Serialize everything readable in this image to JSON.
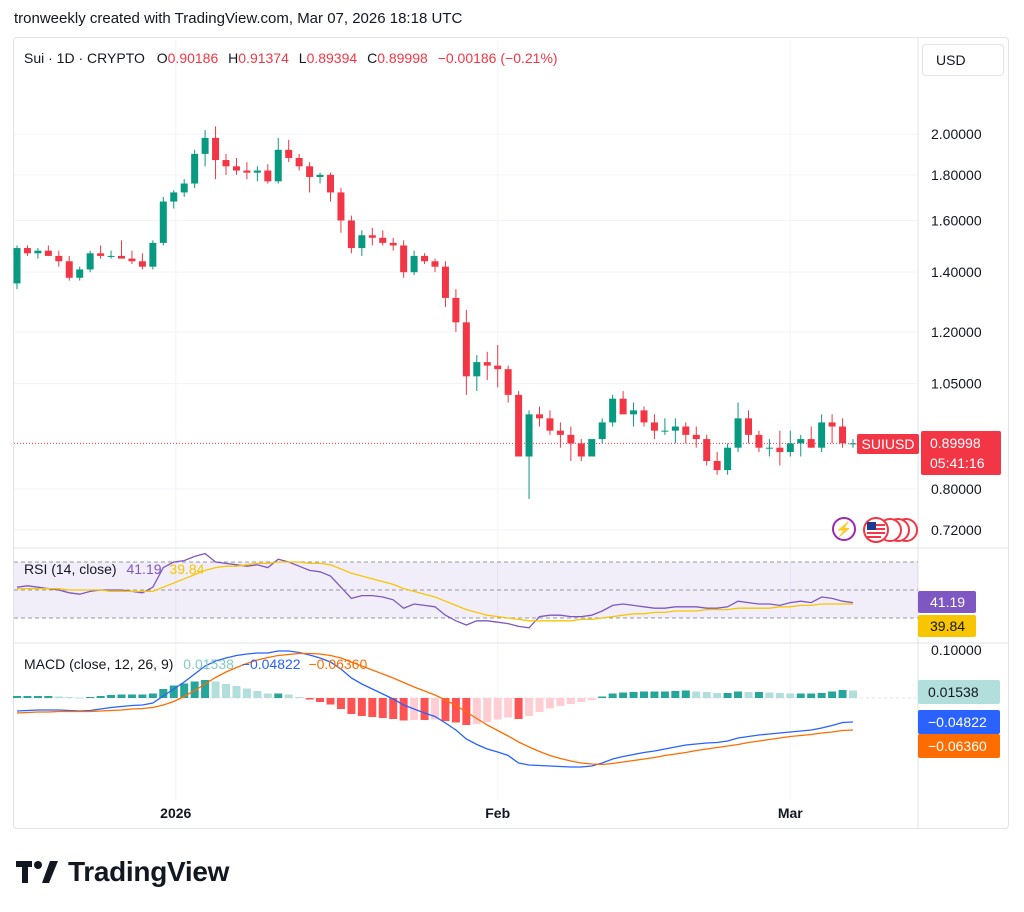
{
  "caption": "tronweekly created with TradingView.com, Mar 07, 2026 18:18 UTC",
  "brand": "TradingView",
  "currency_button": "USD",
  "legend": {
    "symbol": "Sui · 1D · CRYPTO",
    "o_label": "O",
    "o_value": "0.90186",
    "h_label": "H",
    "h_value": "0.91374",
    "l_label": "L",
    "l_value": "0.89394",
    "c_label": "C",
    "c_value": "0.89998",
    "change": "−0.00186 (−0.21%)"
  },
  "price_badge": {
    "ticker": "SUIUSD",
    "price": "0.89998",
    "countdown": "05:41:16"
  },
  "rsi": {
    "title": "RSI (14, close)",
    "value": "41.19",
    "ma_value": "39.84"
  },
  "macd": {
    "title": "MACD (close, 12, 26, 9)",
    "hist": "0.01538",
    "macd": "−0.04822",
    "signal": "−0.06360"
  },
  "colors": {
    "up": "#089981",
    "down": "#f23645",
    "rsi": "#7e57c2",
    "rsi_ma": "#f7c600",
    "macd": "#2962ff",
    "signal": "#ff6d00",
    "hist_up_strong": "#26a69a",
    "hist_up_weak": "#b2dfdb",
    "hist_down_strong": "#ff5252",
    "hist_down_weak": "#ffcdd2"
  },
  "icons": [
    "lightning-icon",
    "us-flag-icon"
  ],
  "chart_data": [
    {
      "type": "candlestick",
      "title": "Sui · 1D · CRYPTO",
      "scale": "log",
      "ylim": [
        0.68,
        2.25
      ],
      "price_ticks": [
        "2.00000",
        "1.80000",
        "1.60000",
        "1.40000",
        "1.20000",
        "1.05000",
        "0.80000",
        "0.72000"
      ],
      "x_ticks": [
        {
          "label": "2026",
          "index": 15
        },
        {
          "label": "Feb",
          "index": 46
        },
        {
          "label": "Mar",
          "index": 74
        }
      ],
      "candles": [
        [
          1.36,
          1.5,
          1.34,
          1.49
        ],
        [
          1.49,
          1.5,
          1.46,
          1.47
        ],
        [
          1.47,
          1.49,
          1.45,
          1.48
        ],
        [
          1.48,
          1.5,
          1.46,
          1.46
        ],
        [
          1.46,
          1.48,
          1.42,
          1.44
        ],
        [
          1.44,
          1.46,
          1.37,
          1.38
        ],
        [
          1.38,
          1.42,
          1.37,
          1.41
        ],
        [
          1.41,
          1.48,
          1.4,
          1.47
        ],
        [
          1.47,
          1.5,
          1.45,
          1.46
        ],
        [
          1.46,
          1.48,
          1.45,
          1.46
        ],
        [
          1.46,
          1.52,
          1.45,
          1.45
        ],
        [
          1.45,
          1.48,
          1.43,
          1.44
        ],
        [
          1.44,
          1.47,
          1.41,
          1.42
        ],
        [
          1.42,
          1.52,
          1.41,
          1.51
        ],
        [
          1.51,
          1.7,
          1.5,
          1.68
        ],
        [
          1.68,
          1.73,
          1.65,
          1.72
        ],
        [
          1.72,
          1.78,
          1.7,
          1.76
        ],
        [
          1.76,
          1.92,
          1.74,
          1.9
        ],
        [
          1.9,
          2.02,
          1.84,
          1.98
        ],
        [
          1.98,
          2.04,
          1.78,
          1.87
        ],
        [
          1.87,
          1.9,
          1.8,
          1.84
        ],
        [
          1.84,
          1.88,
          1.8,
          1.82
        ],
        [
          1.82,
          1.86,
          1.78,
          1.81
        ],
        [
          1.81,
          1.84,
          1.77,
          1.82
        ],
        [
          1.82,
          1.85,
          1.76,
          1.77
        ],
        [
          1.77,
          1.98,
          1.76,
          1.92
        ],
        [
          1.92,
          1.97,
          1.86,
          1.88
        ],
        [
          1.88,
          1.9,
          1.82,
          1.84
        ],
        [
          1.84,
          1.86,
          1.72,
          1.79
        ],
        [
          1.79,
          1.81,
          1.76,
          1.8
        ],
        [
          1.8,
          1.81,
          1.68,
          1.72
        ],
        [
          1.72,
          1.74,
          1.55,
          1.6
        ],
        [
          1.6,
          1.62,
          1.47,
          1.49
        ],
        [
          1.49,
          1.56,
          1.46,
          1.54
        ],
        [
          1.54,
          1.57,
          1.5,
          1.53
        ],
        [
          1.53,
          1.56,
          1.5,
          1.51
        ],
        [
          1.51,
          1.53,
          1.48,
          1.5
        ],
        [
          1.5,
          1.52,
          1.38,
          1.4
        ],
        [
          1.4,
          1.48,
          1.39,
          1.46
        ],
        [
          1.46,
          1.47,
          1.43,
          1.44
        ],
        [
          1.44,
          1.45,
          1.4,
          1.42
        ],
        [
          1.42,
          1.44,
          1.28,
          1.31
        ],
        [
          1.31,
          1.34,
          1.2,
          1.23
        ],
        [
          1.23,
          1.27,
          1.02,
          1.07
        ],
        [
          1.07,
          1.13,
          1.03,
          1.11
        ],
        [
          1.11,
          1.14,
          1.06,
          1.1
        ],
        [
          1.1,
          1.16,
          1.04,
          1.09
        ],
        [
          1.09,
          1.1,
          1.0,
          1.02
        ],
        [
          1.02,
          1.03,
          0.87,
          0.87
        ],
        [
          0.87,
          0.98,
          0.78,
          0.97
        ],
        [
          0.97,
          0.99,
          0.94,
          0.96
        ],
        [
          0.96,
          0.98,
          0.92,
          0.93
        ],
        [
          0.93,
          0.95,
          0.89,
          0.92
        ],
        [
          0.92,
          0.94,
          0.86,
          0.9
        ],
        [
          0.9,
          0.91,
          0.86,
          0.87
        ],
        [
          0.87,
          0.91,
          0.87,
          0.91
        ],
        [
          0.91,
          0.96,
          0.9,
          0.95
        ],
        [
          0.95,
          1.02,
          0.94,
          1.01
        ],
        [
          1.01,
          1.03,
          0.97,
          0.97
        ],
        [
          0.97,
          1.0,
          0.94,
          0.98
        ],
        [
          0.98,
          0.99,
          0.94,
          0.95
        ],
        [
          0.95,
          0.97,
          0.91,
          0.93
        ],
        [
          0.93,
          0.96,
          0.92,
          0.93
        ],
        [
          0.93,
          0.96,
          0.9,
          0.94
        ],
        [
          0.94,
          0.95,
          0.9,
          0.92
        ],
        [
          0.92,
          0.94,
          0.89,
          0.91
        ],
        [
          0.91,
          0.92,
          0.85,
          0.86
        ],
        [
          0.86,
          0.88,
          0.83,
          0.84
        ],
        [
          0.84,
          0.9,
          0.83,
          0.89
        ],
        [
          0.89,
          1.0,
          0.88,
          0.96
        ],
        [
          0.96,
          0.98,
          0.9,
          0.92
        ],
        [
          0.92,
          0.93,
          0.88,
          0.89
        ],
        [
          0.89,
          0.91,
          0.87,
          0.89
        ],
        [
          0.89,
          0.93,
          0.85,
          0.88
        ],
        [
          0.88,
          0.93,
          0.87,
          0.9
        ],
        [
          0.9,
          0.92,
          0.87,
          0.91
        ],
        [
          0.91,
          0.94,
          0.89,
          0.89
        ],
        [
          0.89,
          0.97,
          0.88,
          0.95
        ],
        [
          0.95,
          0.97,
          0.9,
          0.94
        ],
        [
          0.94,
          0.96,
          0.89,
          0.9
        ],
        [
          0.9,
          0.91,
          0.89,
          0.9
        ]
      ]
    },
    {
      "type": "line",
      "title": "RSI (14, close)",
      "levels": [
        70,
        50,
        30
      ],
      "series": [
        {
          "name": "RSI",
          "values": [
            52,
            53,
            52,
            51,
            50,
            48,
            47,
            49,
            50,
            50,
            50,
            49,
            48,
            52,
            66,
            70,
            71,
            74,
            76,
            70,
            69,
            68,
            67,
            68,
            66,
            72,
            70,
            67,
            64,
            63,
            60,
            52,
            44,
            46,
            46,
            45,
            43,
            37,
            40,
            39,
            38,
            32,
            28,
            25,
            28,
            28,
            27,
            26,
            24,
            23,
            31,
            32,
            32,
            31,
            31,
            32,
            35,
            39,
            40,
            39,
            38,
            37,
            37,
            38,
            38,
            38,
            37,
            37,
            38,
            42,
            41,
            40,
            40,
            39,
            41,
            42,
            41,
            45,
            44,
            42,
            41
          ]
        },
        {
          "name": "MA",
          "values": [
            51,
            51,
            51,
            51,
            51,
            50,
            50,
            50,
            50,
            49,
            49,
            49,
            49,
            49,
            52,
            55,
            58,
            61,
            64,
            66,
            67,
            67,
            68,
            69,
            69,
            70,
            70,
            70,
            69,
            69,
            68,
            65,
            62,
            60,
            58,
            56,
            54,
            51,
            49,
            47,
            45,
            42,
            39,
            36,
            34,
            32,
            31,
            30,
            29,
            28,
            28,
            28,
            28,
            28,
            29,
            29,
            30,
            31,
            32,
            33,
            33,
            34,
            34,
            35,
            35,
            35,
            36,
            36,
            36,
            37,
            37,
            37,
            37,
            38,
            38,
            39,
            39,
            40,
            40,
            40,
            40
          ]
        }
      ]
    },
    {
      "type": "line+bar",
      "title": "MACD (close, 12, 26, 9)",
      "y_ticks": [
        "0.10000"
      ],
      "series": [
        {
          "name": "MACD",
          "values": [
            -0.026,
            -0.025,
            -0.024,
            -0.024,
            -0.024,
            -0.025,
            -0.026,
            -0.025,
            -0.022,
            -0.019,
            -0.017,
            -0.015,
            -0.014,
            -0.01,
            0.004,
            0.018,
            0.032,
            0.048,
            0.064,
            0.074,
            0.08,
            0.085,
            0.088,
            0.09,
            0.09,
            0.094,
            0.094,
            0.091,
            0.086,
            0.08,
            0.072,
            0.058,
            0.04,
            0.028,
            0.018,
            0.008,
            -0.002,
            -0.014,
            -0.022,
            -0.03,
            -0.037,
            -0.05,
            -0.064,
            -0.082,
            -0.093,
            -0.102,
            -0.108,
            -0.115,
            -0.13,
            -0.134,
            -0.135,
            -0.136,
            -0.137,
            -0.138,
            -0.138,
            -0.136,
            -0.13,
            -0.122,
            -0.117,
            -0.113,
            -0.109,
            -0.106,
            -0.102,
            -0.098,
            -0.094,
            -0.092,
            -0.09,
            -0.089,
            -0.086,
            -0.08,
            -0.077,
            -0.074,
            -0.072,
            -0.07,
            -0.068,
            -0.066,
            -0.064,
            -0.06,
            -0.055,
            -0.049,
            -0.048
          ]
        },
        {
          "name": "Signal",
          "values": [
            -0.03,
            -0.029,
            -0.028,
            -0.028,
            -0.027,
            -0.027,
            -0.027,
            -0.027,
            -0.026,
            -0.025,
            -0.024,
            -0.022,
            -0.021,
            -0.019,
            -0.014,
            -0.007,
            0.003,
            0.015,
            0.028,
            0.041,
            0.052,
            0.061,
            0.069,
            0.076,
            0.081,
            0.085,
            0.087,
            0.089,
            0.089,
            0.088,
            0.085,
            0.08,
            0.072,
            0.064,
            0.056,
            0.048,
            0.04,
            0.031,
            0.022,
            0.014,
            0.006,
            -0.004,
            -0.015,
            -0.028,
            -0.041,
            -0.054,
            -0.065,
            -0.076,
            -0.088,
            -0.098,
            -0.107,
            -0.115,
            -0.121,
            -0.126,
            -0.13,
            -0.132,
            -0.133,
            -0.131,
            -0.128,
            -0.125,
            -0.122,
            -0.119,
            -0.115,
            -0.112,
            -0.109,
            -0.105,
            -0.102,
            -0.099,
            -0.096,
            -0.093,
            -0.089,
            -0.086,
            -0.083,
            -0.08,
            -0.077,
            -0.075,
            -0.073,
            -0.07,
            -0.068,
            -0.065,
            -0.064
          ]
        },
        {
          "name": "Histogram",
          "values": [
            0.004,
            0.004,
            0.004,
            0.004,
            0.003,
            0.002,
            0.001,
            0.002,
            0.004,
            0.006,
            0.007,
            0.007,
            0.007,
            0.009,
            0.018,
            0.025,
            0.029,
            0.033,
            0.036,
            0.033,
            0.028,
            0.024,
            0.019,
            0.014,
            0.009,
            0.009,
            0.007,
            0.002,
            -0.003,
            -0.008,
            -0.013,
            -0.022,
            -0.032,
            -0.036,
            -0.038,
            -0.04,
            -0.042,
            -0.045,
            -0.044,
            -0.044,
            -0.043,
            -0.046,
            -0.049,
            -0.054,
            -0.052,
            -0.048,
            -0.043,
            -0.039,
            -0.042,
            -0.036,
            -0.028,
            -0.021,
            -0.016,
            -0.012,
            -0.008,
            -0.004,
            0.003,
            0.009,
            0.011,
            0.012,
            0.013,
            0.013,
            0.013,
            0.014,
            0.015,
            0.013,
            0.012,
            0.01,
            0.01,
            0.013,
            0.012,
            0.012,
            0.011,
            0.01,
            0.009,
            0.009,
            0.009,
            0.01,
            0.013,
            0.016,
            0.015
          ]
        }
      ]
    }
  ]
}
